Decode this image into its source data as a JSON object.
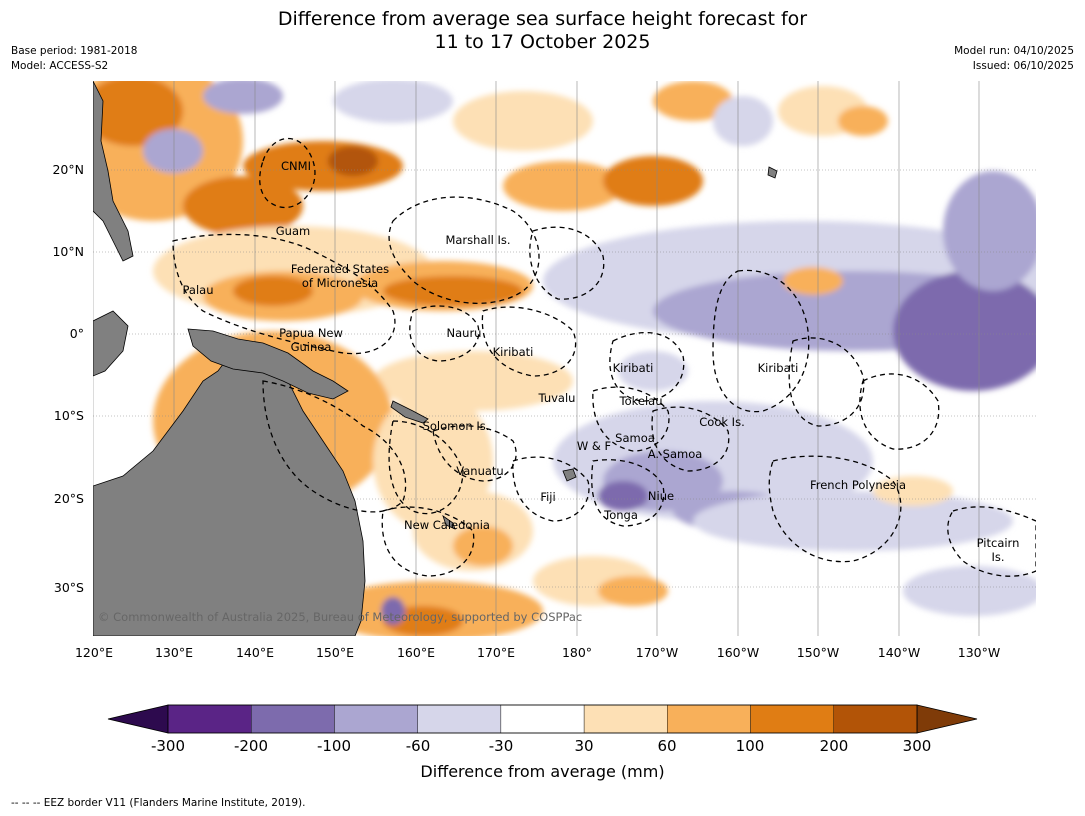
{
  "title": {
    "line1": "Difference from average sea surface height forecast for",
    "line2": "11 to 17 October 2025"
  },
  "meta_left": {
    "base_period": "Base period: 1981-2018",
    "model": "Model: ACCESS-S2"
  },
  "meta_right": {
    "model_run": "Model run: 04/10/2025",
    "issued": "Issued: 06/10/2025"
  },
  "axes": {
    "lat_labels": [
      "20°N",
      "10°N",
      "0°",
      "10°S",
      "20°S",
      "30°S"
    ],
    "lon_labels": [
      "120°E",
      "130°E",
      "140°E",
      "150°E",
      "160°E",
      "170°E",
      "180°",
      "170°W",
      "160°W",
      "150°W",
      "140°W",
      "130°W"
    ]
  },
  "regions": {
    "cnmi": "CNMI",
    "guam": "Guam",
    "marshall": "Marshall Is.",
    "fsm1": "Federated States",
    "fsm2": "of Micronesia",
    "palau": "Palau",
    "png1": "Papua New",
    "png2": "Guinea",
    "nauru": "Nauru",
    "kiribati_w": "Kiribati",
    "kiribati_c": "Kiribati",
    "kiribati_e": "Kiribati",
    "tuvalu": "Tuvalu",
    "tokelau": "Tokelau",
    "cook": "Cook Is.",
    "solomon": "Solomon Is.",
    "samoa": "Samoa",
    "wf": "W & F",
    "asamoa": "A. Samoa",
    "vanuatu": "Vanuatu",
    "french_polynesia": "French Polynesia",
    "fiji": "Fiji",
    "niue": "Niue",
    "tonga": "Tonga",
    "new_caledonia": "New Caledonia",
    "pitcairn1": "Pitcairn",
    "pitcairn2": "Is."
  },
  "copyright": "© Commonwealth of Australia 2025, Bureau of Meteorology, supported by COSPPac",
  "colorbar": {
    "ticks": [
      "-300",
      "-200",
      "-100",
      "-60",
      "-30",
      "30",
      "60",
      "100",
      "200",
      "300"
    ],
    "colors": [
      "#5a2486",
      "#7d6bad",
      "#aba6d1",
      "#d6d6ea",
      "#ffffff",
      "#fde0b5",
      "#f8b05a",
      "#e07d14",
      "#b25407"
    ],
    "under_color": "#2d0a4e",
    "over_color": "#7f3b08",
    "title": "Difference from average (mm)"
  },
  "footer": "--  --  -- EEZ border V11 (Flanders Marine Institute, 2019)."
}
